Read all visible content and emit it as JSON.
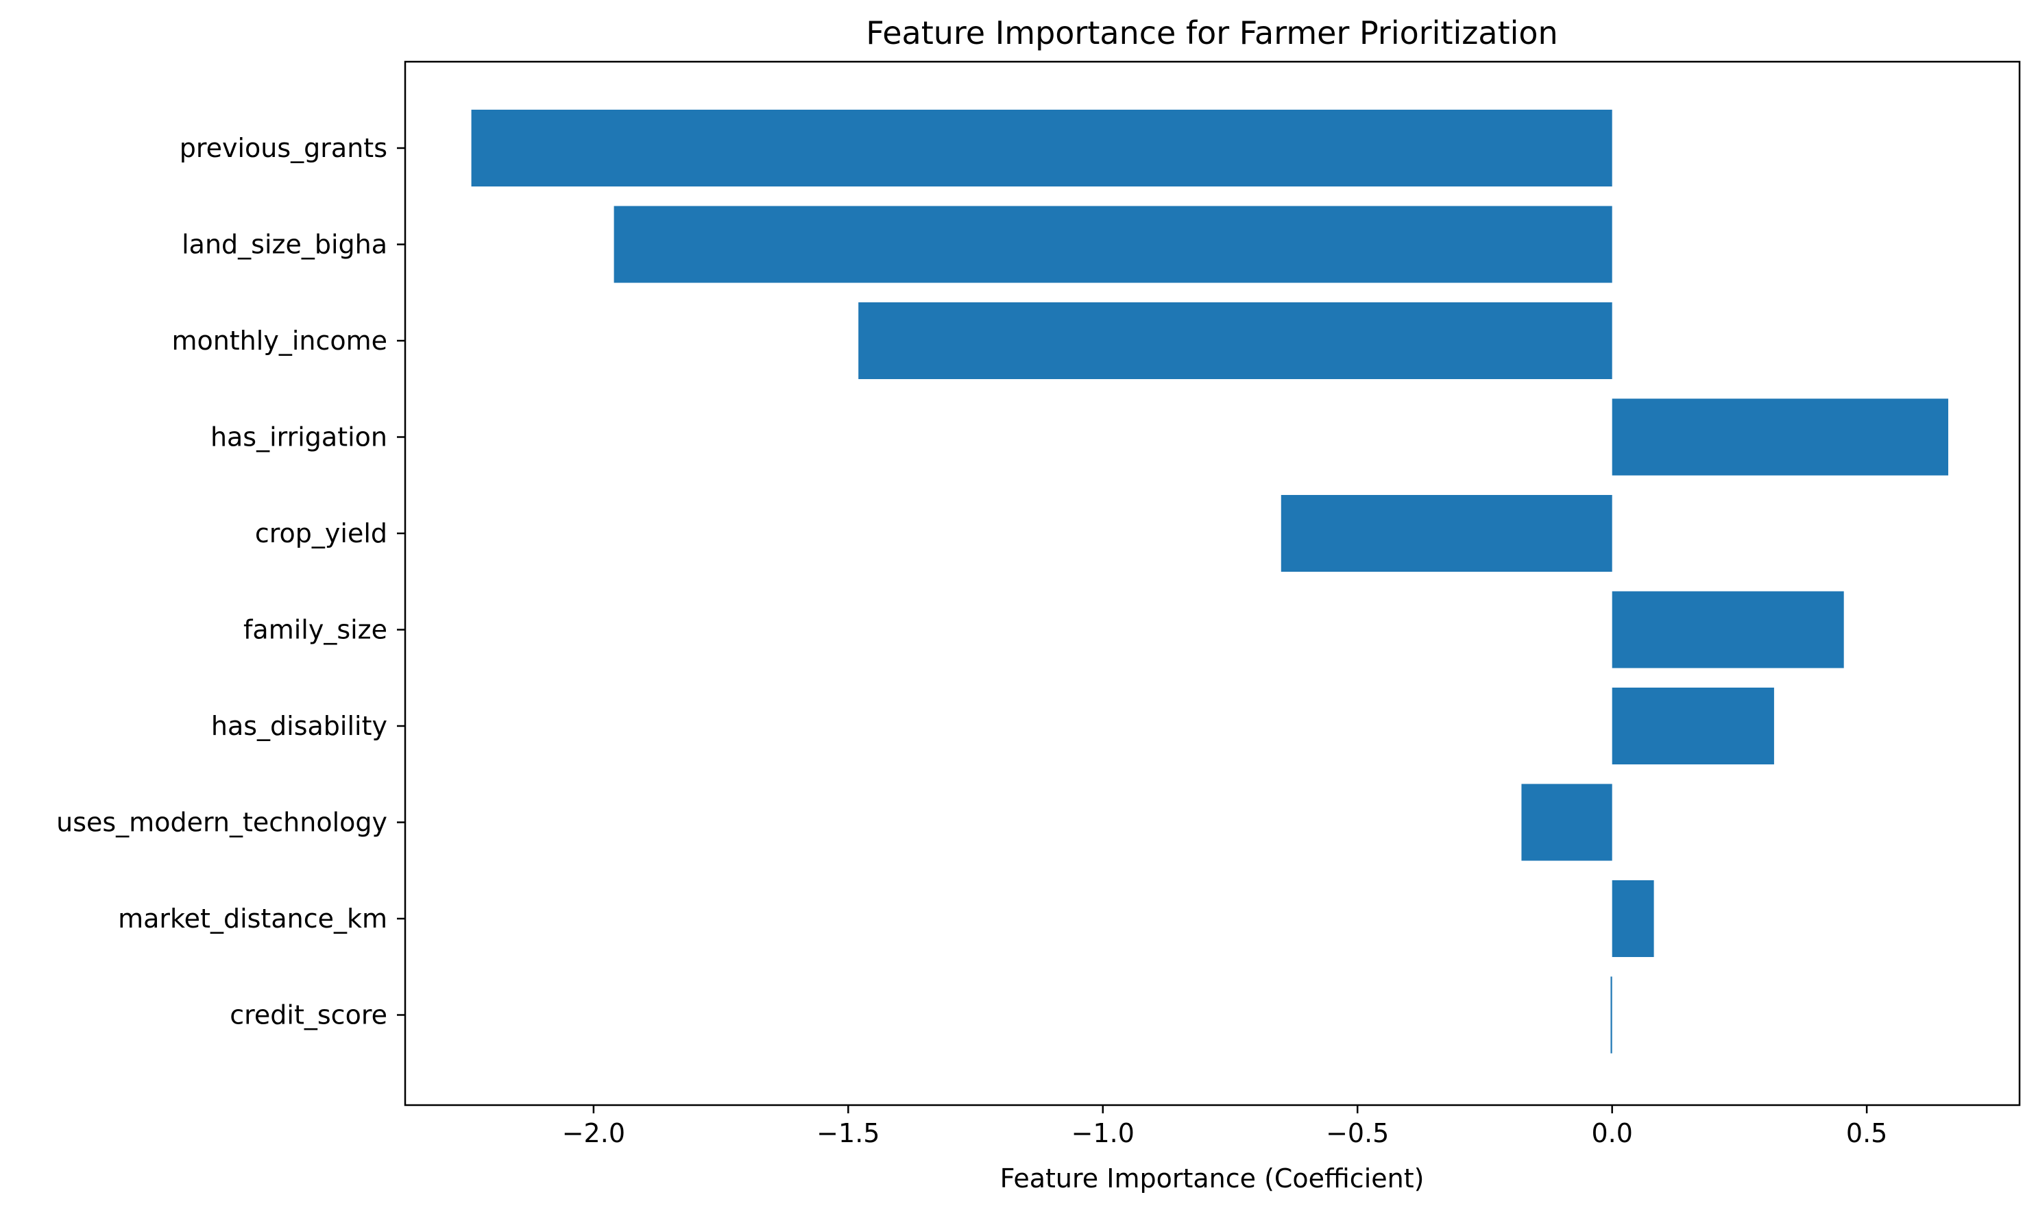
{
  "chart_data": {
    "type": "bar",
    "orientation": "horizontal",
    "title": "Feature Importance for Farmer Prioritization",
    "xlabel": "Feature Importance (Coefficient)",
    "ylabel": "",
    "categories": [
      "previous_grants",
      "land_size_bigha",
      "monthly_income",
      "has_irrigation",
      "crop_yield",
      "family_size",
      "has_disability",
      "uses_modern_technology",
      "market_distance_km",
      "credit_score"
    ],
    "values": [
      -2.24,
      -1.96,
      -1.48,
      0.66,
      -0.65,
      0.455,
      0.318,
      -0.178,
      0.082,
      -0.003
    ],
    "xlim": [
      -2.37,
      0.8
    ],
    "xticks": [
      -2.0,
      -1.5,
      -1.0,
      -0.5,
      0.0,
      0.5
    ],
    "xtick_labels": [
      "−2.0",
      "−1.5",
      "−1.0",
      "−0.5",
      "0.0",
      "0.5"
    ],
    "bar_color": "#1f77b4",
    "grid": false,
    "legend": "none"
  }
}
